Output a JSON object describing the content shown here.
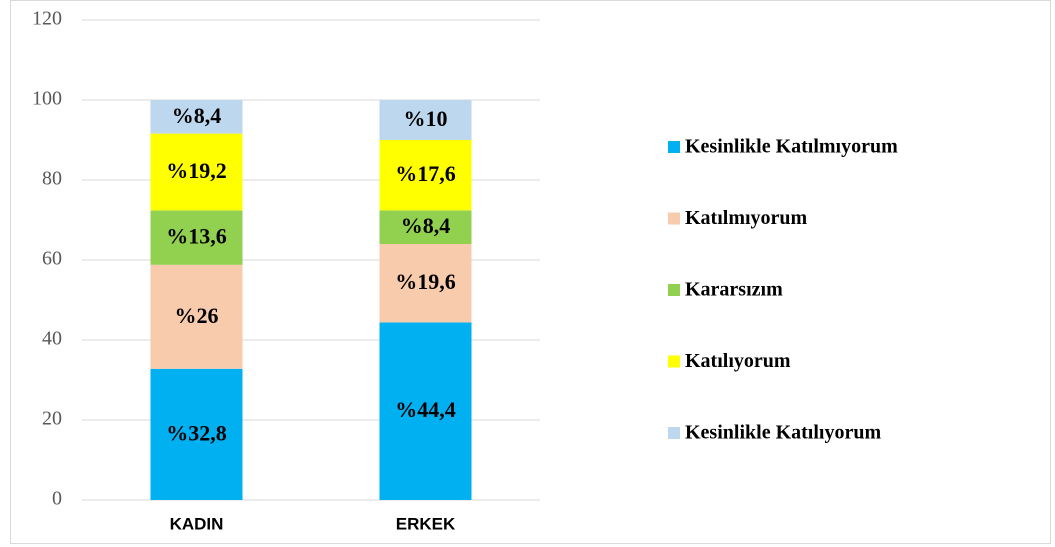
{
  "chart_data": {
    "type": "stacked_bar",
    "categories": [
      "KADIN",
      "ERKEK"
    ],
    "series": [
      {
        "name": "Kesinlikle Katılmıyorum",
        "color": "#00b0f0",
        "values": [
          32.8,
          44.4
        ],
        "value_labels": [
          "%32,8",
          "%44,4"
        ]
      },
      {
        "name": "Katılmıyorum",
        "color": "#f8cbad",
        "values": [
          26,
          19.6
        ],
        "value_labels": [
          "%26",
          "%19,6"
        ]
      },
      {
        "name": "Kararsızım",
        "color": "#92d050",
        "values": [
          13.6,
          8.4
        ],
        "value_labels": [
          "%13,6",
          "%8,4"
        ]
      },
      {
        "name": "Katılıyorum",
        "color": "#ffff00",
        "values": [
          19.2,
          17.6
        ],
        "value_labels": [
          "%19,2",
          "%17,6"
        ]
      },
      {
        "name": "Kesinlikle Katılıyorum",
        "color": "#bdd7ee",
        "values": [
          8.4,
          10
        ],
        "value_labels": [
          "%8,4",
          "%10"
        ]
      }
    ],
    "ylim": [
      0,
      120
    ],
    "yticks": [
      0,
      20,
      40,
      60,
      80,
      100,
      120
    ],
    "grid": true,
    "legend": "right"
  }
}
